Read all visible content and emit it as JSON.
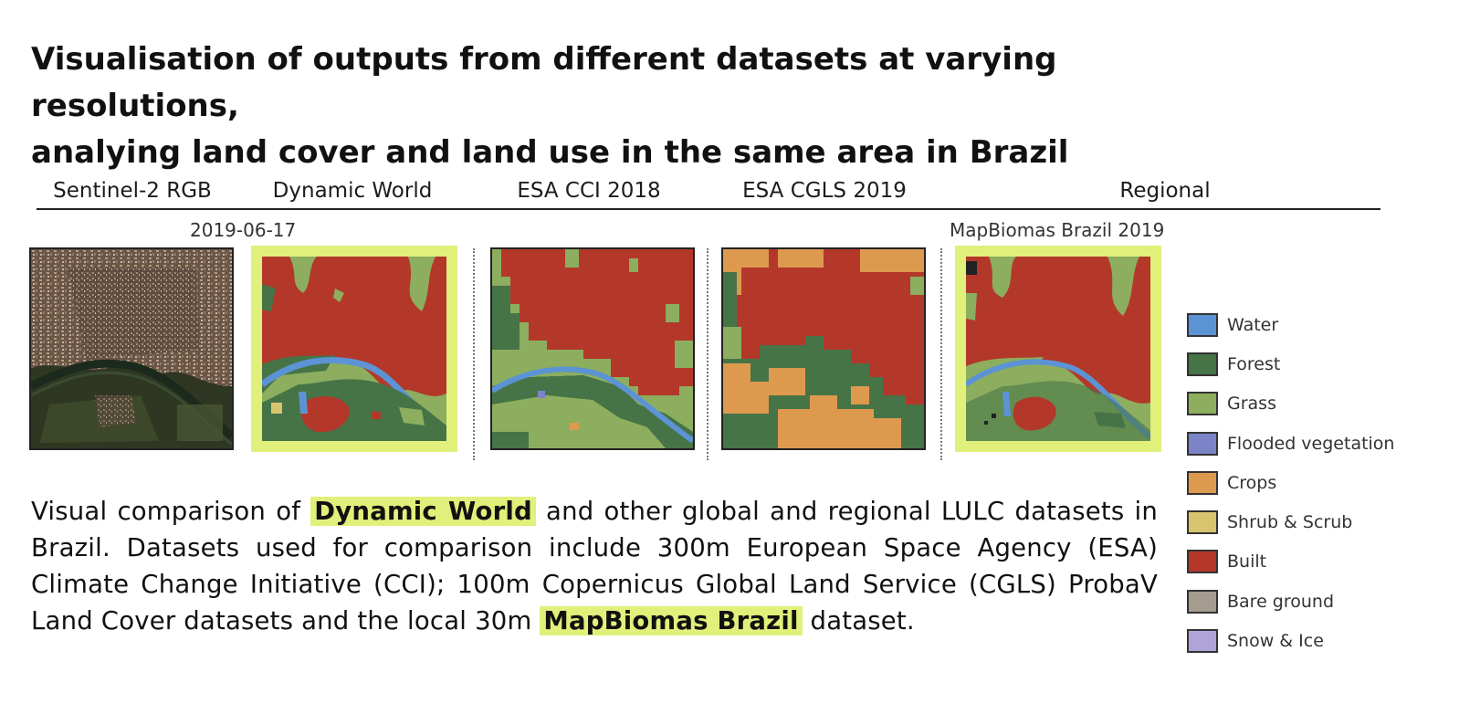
{
  "title_line1": "Visualisation of outputs from different datasets at varying resolutions,",
  "title_line2": "analying land cover and land use in the same area in Brazil",
  "columns": [
    {
      "label": "Sentinel-2 RGB"
    },
    {
      "label": "Dynamic World"
    },
    {
      "label": "ESA CCI 2018"
    },
    {
      "label": "ESA CGLS 2019"
    },
    {
      "label": "Regional"
    }
  ],
  "date_label": "2019-06-17",
  "regional_sublabel": "MapBiomas Brazil 2019",
  "caption": {
    "part1": "Visual comparison of ",
    "highlight1": "Dynamic World",
    "part2": " and other global and regional LULC datasets in Brazil. Datasets used for comparison include 300m European Space Agency (ESA) Climate Change Initiative (CCI); 100m Copernicus Global Land Service (CGLS) ProbaV Land Cover datasets and the local 30m ",
    "highlight2": "MapBiomas Brazil",
    "part3": " dataset."
  },
  "legend": [
    {
      "label": "Water",
      "color": "#5c93d4"
    },
    {
      "label": "Forest",
      "color": "#467447"
    },
    {
      "label": "Grass",
      "color": "#8cae5e"
    },
    {
      "label": "Flooded vegetation",
      "color": "#7b84c6"
    },
    {
      "label": "Crops",
      "color": "#dd9a4f"
    },
    {
      "label": "Shrub & Scrub",
      "color": "#d8c46f"
    },
    {
      "label": "Built",
      "color": "#b3382a"
    },
    {
      "label": "Bare ground",
      "color": "#a59b8e"
    },
    {
      "label": "Snow & Ice",
      "color": "#b0a3d8"
    }
  ],
  "colors": {
    "highlight": "#e1f07a",
    "built": "#b3382a",
    "grass": "#8cae5e",
    "forest": "#467447",
    "water": "#5c93d4",
    "crops": "#dd9a4f"
  }
}
